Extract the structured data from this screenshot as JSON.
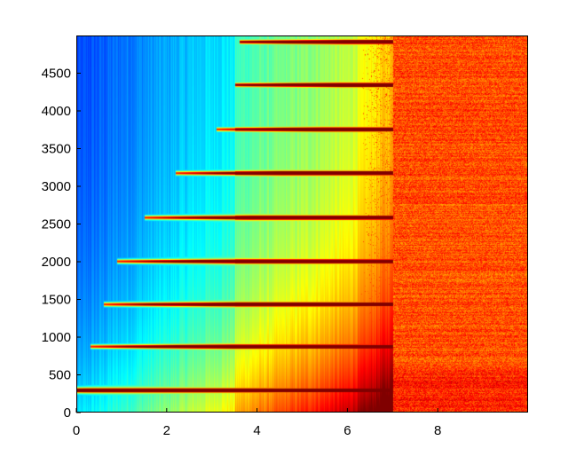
{
  "chart_data": {
    "type": "heatmap",
    "title": "",
    "xlabel": "",
    "ylabel": "",
    "xlim": [
      0,
      10
    ],
    "ylim": [
      0,
      5000
    ],
    "x_ticks": [
      0,
      2,
      4,
      6,
      8
    ],
    "y_ticks": [
      0,
      500,
      1000,
      1500,
      2000,
      2500,
      3000,
      3500,
      4000,
      4500
    ],
    "x_tick_labels": [
      "0",
      "2",
      "4",
      "6",
      "8"
    ],
    "y_tick_labels": [
      "0",
      "500",
      "1000",
      "1500",
      "2000",
      "2500",
      "3000",
      "3500",
      "4000",
      "4500"
    ],
    "colormap": "jet",
    "colors": {
      "low": "#1a3cff",
      "mid_low": "#1ec8ff",
      "mid": "#ffe21a",
      "high": "#ff3a00",
      "max": "#b00000"
    },
    "fundamental_hz": 300,
    "harmonics_hz": [
      300,
      880,
      1440,
      2010,
      2590,
      3180,
      3760,
      4350,
      4920
    ],
    "harmonic_onset_s": [
      0,
      0.3,
      0.6,
      0.9,
      1.5,
      2.2,
      3.1,
      3.5,
      3.6
    ],
    "noise_onset_s": 7.0,
    "grid": false,
    "legend": "none"
  }
}
